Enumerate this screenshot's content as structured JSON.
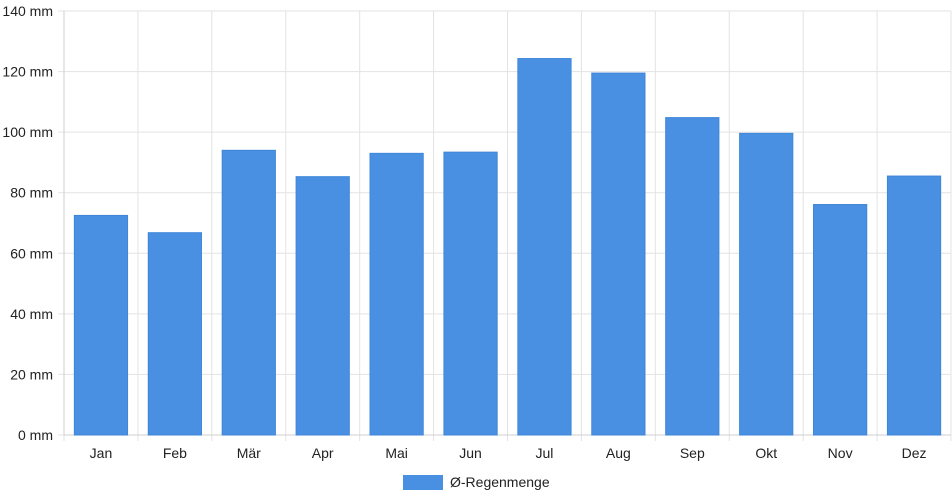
{
  "chart_data": {
    "type": "bar",
    "categories": [
      "Jan",
      "Feb",
      "Mär",
      "Apr",
      "Mai",
      "Jun",
      "Jul",
      "Aug",
      "Sep",
      "Okt",
      "Nov",
      "Dez"
    ],
    "series": [
      {
        "name": "Ø-Regenmenge",
        "values": [
          72.5,
          66.8,
          94,
          85.3,
          93,
          93.4,
          124.3,
          119.5,
          104.8,
          99.6,
          76.1,
          85.5
        ],
        "color": "#4a90e2"
      }
    ],
    "title": "",
    "xlabel": "",
    "ylabel": "",
    "ylim": [
      0,
      140
    ],
    "yticks": [
      "0 mm",
      "20 mm",
      "40 mm",
      "60 mm",
      "80 mm",
      "100 mm",
      "120 mm",
      "140 mm"
    ],
    "grid": true,
    "legend_position": "bottom"
  }
}
